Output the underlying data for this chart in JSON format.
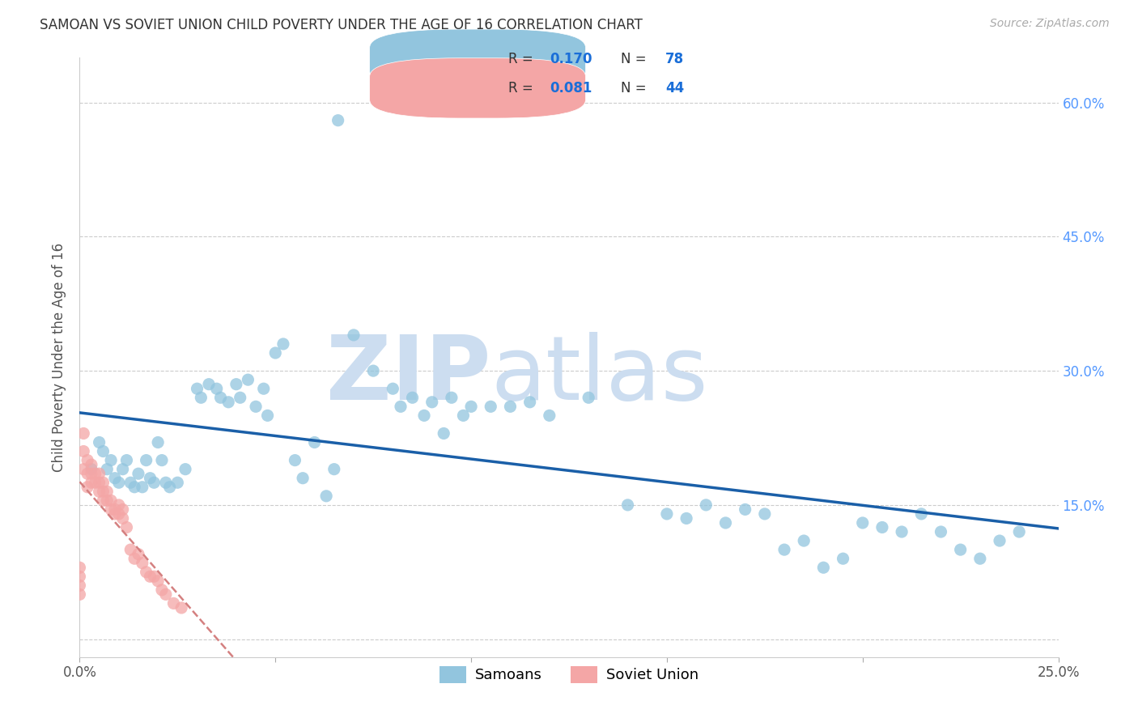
{
  "title": "SAMOAN VS SOVIET UNION CHILD POVERTY UNDER THE AGE OF 16 CORRELATION CHART",
  "source": "Source: ZipAtlas.com",
  "ylabel": "Child Poverty Under the Age of 16",
  "x_min": 0.0,
  "x_max": 0.25,
  "y_min": -0.02,
  "y_max": 0.65,
  "x_ticks": [
    0.0,
    0.05,
    0.1,
    0.15,
    0.2,
    0.25
  ],
  "x_tick_labels": [
    "0.0%",
    "",
    "",
    "",
    "",
    "25.0%"
  ],
  "y_ticks": [
    0.0,
    0.15,
    0.3,
    0.45,
    0.6
  ],
  "y_tick_labels_right": [
    "",
    "15.0%",
    "30.0%",
    "45.0%",
    "60.0%"
  ],
  "samoans_color": "#92c5de",
  "soviet_color": "#f4a6a6",
  "samoans_line_color": "#1a5fa8",
  "soviet_line_color": "#d48080",
  "samoans_R": 0.17,
  "samoans_N": 78,
  "soviet_R": 0.081,
  "soviet_N": 44,
  "grid_color": "#cccccc",
  "bg_color": "#ffffff",
  "right_tick_color": "#5599ff",
  "legend_box_color": "#f0f5ff",
  "samoans_pts_x": [
    0.003,
    0.005,
    0.006,
    0.007,
    0.008,
    0.009,
    0.01,
    0.011,
    0.012,
    0.013,
    0.014,
    0.015,
    0.016,
    0.017,
    0.018,
    0.019,
    0.02,
    0.021,
    0.022,
    0.023,
    0.025,
    0.027,
    0.03,
    0.031,
    0.033,
    0.035,
    0.036,
    0.038,
    0.04,
    0.041,
    0.043,
    0.045,
    0.047,
    0.048,
    0.05,
    0.052,
    0.055,
    0.057,
    0.06,
    0.063,
    0.065,
    0.066,
    0.07,
    0.075,
    0.08,
    0.082,
    0.085,
    0.088,
    0.09,
    0.093,
    0.095,
    0.098,
    0.1,
    0.105,
    0.11,
    0.115,
    0.12,
    0.13,
    0.14,
    0.15,
    0.155,
    0.16,
    0.165,
    0.17,
    0.175,
    0.18,
    0.185,
    0.19,
    0.195,
    0.2,
    0.205,
    0.21,
    0.215,
    0.22,
    0.225,
    0.23,
    0.235,
    0.24
  ],
  "samoans_pts_y": [
    0.19,
    0.22,
    0.21,
    0.19,
    0.2,
    0.18,
    0.175,
    0.19,
    0.2,
    0.175,
    0.17,
    0.185,
    0.17,
    0.2,
    0.18,
    0.175,
    0.22,
    0.2,
    0.175,
    0.17,
    0.175,
    0.19,
    0.28,
    0.27,
    0.285,
    0.28,
    0.27,
    0.265,
    0.285,
    0.27,
    0.29,
    0.26,
    0.28,
    0.25,
    0.32,
    0.33,
    0.2,
    0.18,
    0.22,
    0.16,
    0.19,
    0.58,
    0.34,
    0.3,
    0.28,
    0.26,
    0.27,
    0.25,
    0.265,
    0.23,
    0.27,
    0.25,
    0.26,
    0.26,
    0.26,
    0.265,
    0.25,
    0.27,
    0.15,
    0.14,
    0.135,
    0.15,
    0.13,
    0.145,
    0.14,
    0.1,
    0.11,
    0.08,
    0.09,
    0.13,
    0.125,
    0.12,
    0.14,
    0.12,
    0.1,
    0.09,
    0.11,
    0.12
  ],
  "soviet_pts_x": [
    0.0,
    0.0,
    0.0,
    0.0,
    0.001,
    0.001,
    0.001,
    0.002,
    0.002,
    0.002,
    0.003,
    0.003,
    0.003,
    0.004,
    0.004,
    0.005,
    0.005,
    0.005,
    0.006,
    0.006,
    0.006,
    0.007,
    0.007,
    0.008,
    0.008,
    0.009,
    0.009,
    0.01,
    0.01,
    0.011,
    0.011,
    0.012,
    0.013,
    0.014,
    0.015,
    0.016,
    0.017,
    0.018,
    0.019,
    0.02,
    0.021,
    0.022,
    0.024,
    0.026
  ],
  "soviet_pts_y": [
    0.05,
    0.06,
    0.07,
    0.08,
    0.19,
    0.21,
    0.23,
    0.17,
    0.185,
    0.2,
    0.175,
    0.185,
    0.195,
    0.185,
    0.175,
    0.165,
    0.175,
    0.185,
    0.155,
    0.165,
    0.175,
    0.155,
    0.165,
    0.145,
    0.155,
    0.14,
    0.145,
    0.14,
    0.15,
    0.135,
    0.145,
    0.125,
    0.1,
    0.09,
    0.095,
    0.085,
    0.075,
    0.07,
    0.07,
    0.065,
    0.055,
    0.05,
    0.04,
    0.035
  ]
}
